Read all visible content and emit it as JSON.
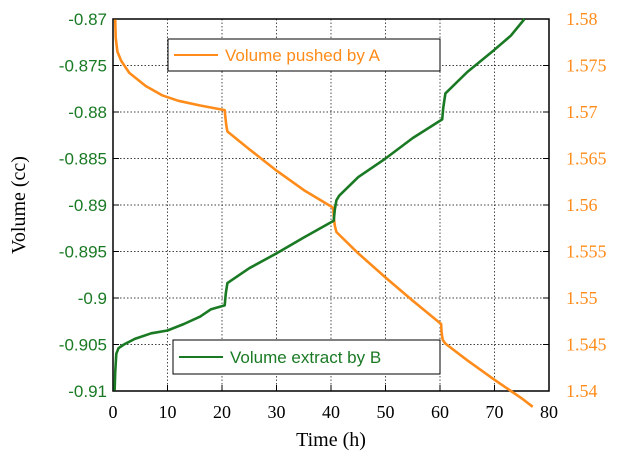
{
  "chart_data": {
    "type": "line",
    "title": "",
    "xlabel": "Time (h)",
    "ylabel_left": "Volume (cc)",
    "ylabel_right": "",
    "xlim": [
      0,
      80
    ],
    "ylim_left": [
      -0.91,
      -0.87
    ],
    "ylim_right": [
      1.54,
      1.58
    ],
    "grid": true,
    "x_ticks": [
      "0",
      "10",
      "20",
      "30",
      "40",
      "50",
      "60",
      "70",
      "80"
    ],
    "y_left_ticks": [
      "-0.87",
      "-0.875",
      "-0.88",
      "-0.885",
      "-0.89",
      "-0.895",
      "-0.9",
      "-0.905",
      "-0.91"
    ],
    "y_right_ticks": [
      "1.58",
      "1.575",
      "1.57",
      "1.565",
      "1.56",
      "1.555",
      "1.55",
      "1.545",
      "1.54"
    ],
    "series": [
      {
        "name": "Volume pushed by A",
        "axis": "right",
        "color": "#ff8c1a",
        "legend_position": "top-left",
        "points": [
          [
            0.4,
            1.58
          ],
          [
            0.5,
            1.578
          ],
          [
            0.8,
            1.5765
          ],
          [
            1.5,
            1.5755
          ],
          [
            3,
            1.5742
          ],
          [
            6,
            1.5728
          ],
          [
            9,
            1.5718
          ],
          [
            12,
            1.5712
          ],
          [
            16,
            1.5707
          ],
          [
            20.5,
            1.5702
          ],
          [
            20.6,
            1.5695
          ],
          [
            20.8,
            1.5685
          ],
          [
            21,
            1.5679
          ],
          [
            25,
            1.566
          ],
          [
            30,
            1.5637
          ],
          [
            35,
            1.5616
          ],
          [
            40.4,
            1.5597
          ],
          [
            40.5,
            1.5588
          ],
          [
            40.7,
            1.5578
          ],
          [
            41,
            1.5571
          ],
          [
            45,
            1.5548
          ],
          [
            50,
            1.5522
          ],
          [
            55,
            1.5497
          ],
          [
            60.2,
            1.5472
          ],
          [
            60.3,
            1.5463
          ],
          [
            60.5,
            1.5455
          ],
          [
            61,
            1.5451
          ],
          [
            65,
            1.5433
          ],
          [
            70,
            1.5412
          ],
          [
            75,
            1.5392
          ],
          [
            77,
            1.5383
          ]
        ]
      },
      {
        "name": "Volume extract by B",
        "axis": "left",
        "color": "#1a7a24",
        "legend_position": "bottom-left",
        "points": [
          [
            0.3,
            -0.91
          ],
          [
            0.4,
            -0.908
          ],
          [
            0.6,
            -0.906
          ],
          [
            1,
            -0.9054
          ],
          [
            2,
            -0.905
          ],
          [
            4,
            -0.9044
          ],
          [
            7,
            -0.9038
          ],
          [
            10,
            -0.9035
          ],
          [
            13,
            -0.9028
          ],
          [
            16,
            -0.902
          ],
          [
            18,
            -0.9012
          ],
          [
            20.5,
            -0.9008
          ],
          [
            20.7,
            -0.8995
          ],
          [
            21,
            -0.8984
          ],
          [
            25,
            -0.8968
          ],
          [
            30,
            -0.8952
          ],
          [
            35,
            -0.8935
          ],
          [
            40.5,
            -0.8917
          ],
          [
            40.7,
            -0.8905
          ],
          [
            41,
            -0.8895
          ],
          [
            41.5,
            -0.889
          ],
          [
            45,
            -0.887
          ],
          [
            50,
            -0.885
          ],
          [
            55,
            -0.8828
          ],
          [
            60.4,
            -0.8808
          ],
          [
            60.6,
            -0.8795
          ],
          [
            61,
            -0.878
          ],
          [
            65,
            -0.8757
          ],
          [
            70,
            -0.8733
          ],
          [
            73,
            -0.8718
          ],
          [
            75.5,
            -0.87
          ]
        ]
      }
    ]
  }
}
